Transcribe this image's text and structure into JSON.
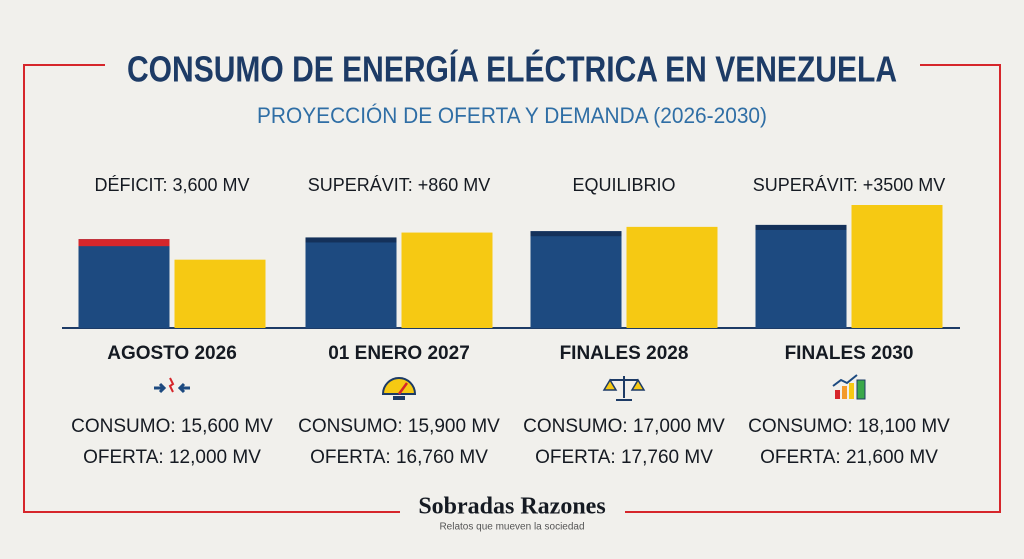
{
  "chart_data": {
    "type": "bar",
    "title": "CONSUMO DE ENERGÍA ELÉCTRICA EN VENEZUELA",
    "subtitle": "PROYECCIÓN DE OFERTA Y DEMANDA (2026-2030)",
    "categories": [
      "AGOSTO 2026",
      "01 ENERO 2027",
      "FINALES 2028",
      "FINALES 2030"
    ],
    "annotations": [
      "DÉFICIT: 3,600 MV",
      "SUPERÁVIT: +860 MV",
      "EQUILIBRIO",
      "SUPERÁVIT: +3500 MV"
    ],
    "series": [
      {
        "color": "#1d4a80",
        "values": [
          15600,
          15900,
          17000,
          18100
        ],
        "value_labels": [
          "CONSUMO: 15,600 MV",
          "CONSUMO: 15,900 MV",
          "CONSUMO: 17,000 MV",
          "CONSUMO: 18,100 MV"
        ]
      },
      {
        "color": "#f6c913",
        "values": [
          12000,
          16760,
          17760,
          21600
        ],
        "value_labels": [
          "OFERTA: 12,000 MV",
          "OFERTA: 16,760  MV",
          "OFERTA: 17,760  MV",
          "OFERTA: 21,600 MV"
        ]
      }
    ]
  },
  "footer": {
    "brand": "Sobradas Razones",
    "tagline": "Relatos que mueven la sociedad"
  }
}
